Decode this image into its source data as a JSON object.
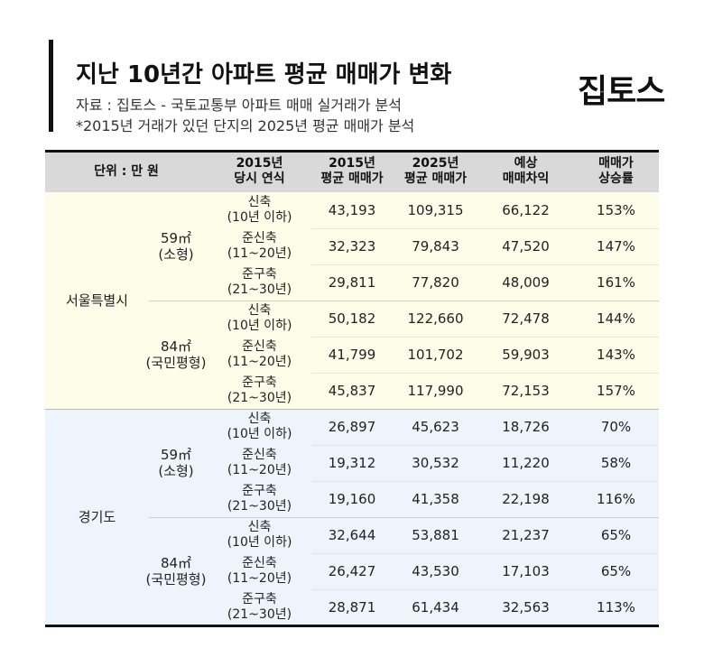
{
  "header": {
    "title": "지난 10년간 아파트 평균 매매가 변화",
    "subtitle": "자료 : 집토스 - 국토교통부 아파트 매매 실거래가 분석",
    "note": "*2015년 거래가 있던 단지의 2025년 평균 매매가 분석",
    "logo": "집토스"
  },
  "table": {
    "columns": [
      "단위 : 만 원",
      "2015년\n당시 연식",
      "2015년\n평균 매매가",
      "2025년\n평균 매매가",
      "예상\n매매차익",
      "매매가\n상승률"
    ],
    "groups": [
      {
        "region": "서울특별시",
        "sizes": [
          {
            "size": "59㎡\n(소형)",
            "rows": [
              [
                "신축\n(10년 이하)",
                "43,193",
                "109,315",
                "66,122",
                "153%"
              ],
              [
                "준신축\n(11~20년)",
                "32,323",
                "79,843",
                "47,520",
                "147%"
              ],
              [
                "준구축\n(21~30년)",
                "29,811",
                "77,820",
                "48,009",
                "161%"
              ]
            ]
          },
          {
            "size": "84㎡\n(국민평형)",
            "rows": [
              [
                "신축\n(10년 이하)",
                "50,182",
                "122,660",
                "72,478",
                "144%"
              ],
              [
                "준신축\n(11~20년)",
                "41,799",
                "101,702",
                "59,903",
                "143%"
              ],
              [
                "준구축\n(21~30년)",
                "45,837",
                "117,990",
                "72,153",
                "157%"
              ]
            ]
          }
        ]
      },
      {
        "region": "경기도",
        "sizes": [
          {
            "size": "59㎡\n(소형)",
            "rows": [
              [
                "신축\n(10년 이하)",
                "26,897",
                "45,623",
                "18,726",
                "70%"
              ],
              [
                "준신축\n(11~20년)",
                "19,312",
                "30,532",
                "11,220",
                "58%"
              ],
              [
                "준구축\n(21~30년)",
                "19,160",
                "41,358",
                "22,198",
                "116%"
              ]
            ]
          },
          {
            "size": "84㎡\n(국민평형)",
            "rows": [
              [
                "신축\n(10년 이하)",
                "32,644",
                "53,881",
                "21,237",
                "65%"
              ],
              [
                "준신축\n(11~20년)",
                "26,427",
                "43,530",
                "17,103",
                "65%"
              ],
              [
                "준구축\n(21~30년)",
                "28,871",
                "61,434",
                "32,563",
                "113%"
              ]
            ]
          }
        ]
      }
    ]
  }
}
